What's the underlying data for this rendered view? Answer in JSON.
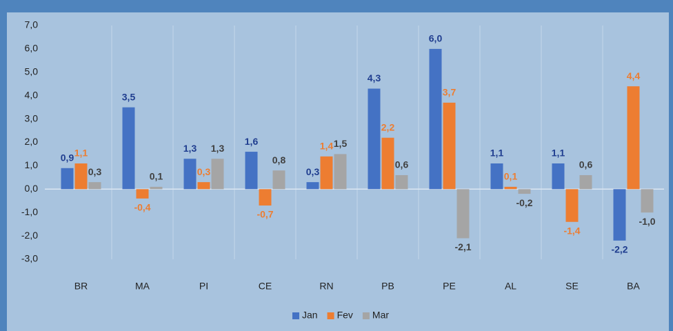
{
  "chart_data": {
    "type": "bar",
    "categories": [
      "BR",
      "MA",
      "PI",
      "CE",
      "RN",
      "PB",
      "PE",
      "AL",
      "SE",
      "BA"
    ],
    "series": [
      {
        "name": "Jan",
        "color": "#4472c4",
        "label_color": "#1f3d8f",
        "values": [
          0.9,
          3.5,
          1.3,
          1.6,
          0.3,
          4.3,
          6.0,
          1.1,
          1.1,
          -2.2
        ],
        "value_labels": [
          "0,9",
          "3,5",
          "1,3",
          "1,6",
          "0,3",
          "4,3",
          "6,0",
          "1,1",
          "1,1",
          "-2,2"
        ]
      },
      {
        "name": "Fev",
        "color": "#ed7d31",
        "label_color": "#ed7d31",
        "values": [
          1.1,
          -0.4,
          0.3,
          -0.7,
          1.4,
          2.2,
          3.7,
          0.1,
          -1.4,
          4.4
        ],
        "value_labels": [
          "1,1",
          "-0,4",
          "0,3",
          "-0,7",
          "1,4",
          "2,2",
          "3,7",
          "0,1",
          "-1,4",
          "4,4"
        ]
      },
      {
        "name": "Mar",
        "color": "#a5a5a5",
        "label_color": "#404040",
        "values": [
          0.3,
          0.1,
          1.3,
          0.8,
          1.5,
          0.6,
          -2.1,
          -0.2,
          0.6,
          -1.0
        ],
        "value_labels": [
          "0,3",
          "0,1",
          "1,3",
          "0,8",
          "1,5",
          "0,6",
          "-2,1",
          "-0,2",
          "0,6",
          "-1,0"
        ]
      }
    ],
    "ylim": [
      -3,
      7
    ],
    "yticks": [
      {
        "value": 7,
        "label": "7,0"
      },
      {
        "value": 6,
        "label": "6,0"
      },
      {
        "value": 5,
        "label": "5,0"
      },
      {
        "value": 4,
        "label": "4,0"
      },
      {
        "value": 3,
        "label": "3,0"
      },
      {
        "value": 2,
        "label": "2,0"
      },
      {
        "value": 1,
        "label": "1,0"
      },
      {
        "value": 0,
        "label": "0,0"
      },
      {
        "value": -1,
        "label": "-1,0"
      },
      {
        "value": -2,
        "label": "-2,0"
      },
      {
        "value": -3,
        "label": "-3,0"
      }
    ],
    "grid": false,
    "legend": "bottom"
  }
}
